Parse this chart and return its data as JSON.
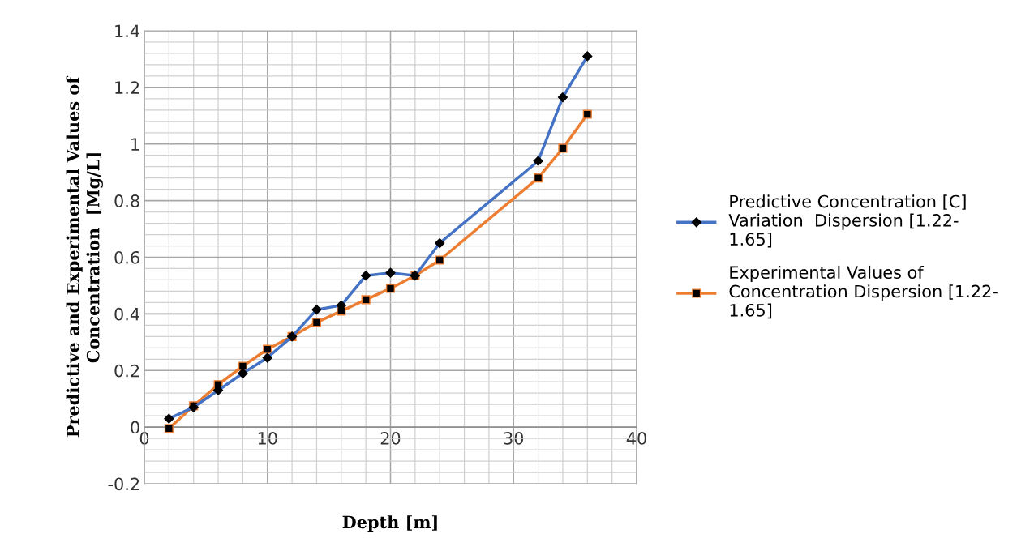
{
  "chart_data": {
    "type": "line",
    "xlabel": "Depth [m]",
    "ylabel": "Predictive and Experimental Values of\nConcentration  [Mg/L]",
    "xlim": [
      0,
      40
    ],
    "xticks": [
      0,
      10,
      20,
      30,
      40
    ],
    "ylim": [
      -0.2,
      1.4
    ],
    "yticks": [
      -0.2,
      0,
      0.2,
      0.4,
      0.6,
      0.8,
      1,
      1.2,
      1.4
    ],
    "grid": true,
    "legend": "right",
    "line_style": "solid",
    "series": [
      {
        "name": "Predictive Concentration [C]\nVariation  Dispersion [1.22-\n1.65]",
        "color": "#4472c4",
        "marker": "diamond",
        "x": [
          2,
          4,
          6,
          8,
          10,
          12,
          14,
          16,
          18,
          20,
          22,
          24,
          32,
          34,
          36
        ],
        "values": [
          0.03,
          0.07,
          0.13,
          0.19,
          0.245,
          0.32,
          0.415,
          0.43,
          0.535,
          0.545,
          0.535,
          0.65,
          0.94,
          1.165,
          1.31
        ]
      },
      {
        "name": "Experimental Values of\nConcentration Dispersion [1.22-\n1.65]",
        "color": "#ed7d31",
        "marker": "square",
        "x": [
          2,
          4,
          6,
          8,
          10,
          12,
          14,
          16,
          18,
          20,
          22,
          24,
          32,
          34,
          36
        ],
        "values": [
          -0.005,
          0.075,
          0.15,
          0.215,
          0.275,
          0.32,
          0.37,
          0.41,
          0.45,
          0.49,
          0.535,
          0.59,
          0.88,
          0.985,
          1.105
        ]
      }
    ]
  }
}
